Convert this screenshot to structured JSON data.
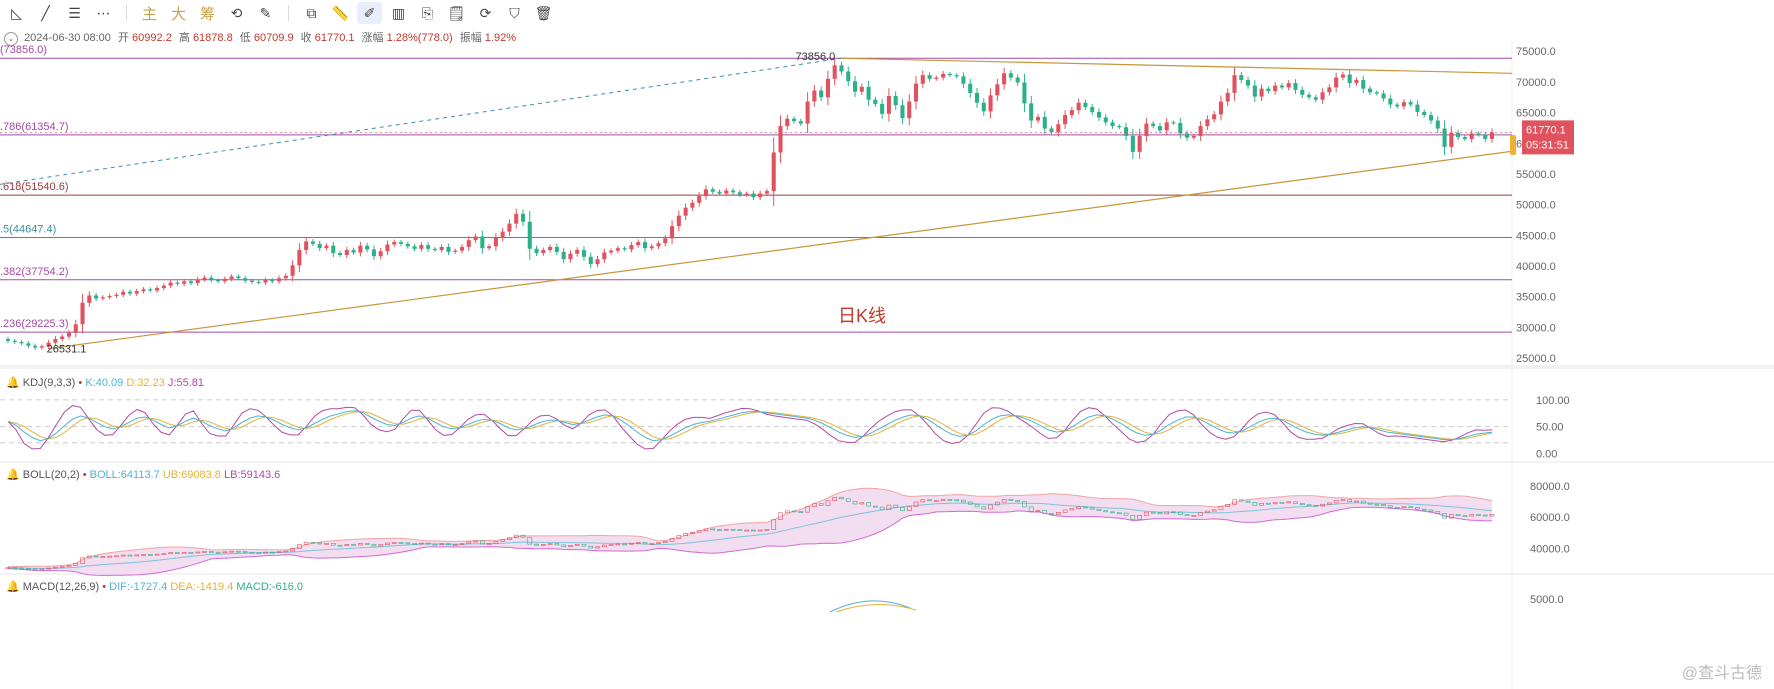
{
  "toolbar": {
    "items": [
      {
        "name": "trend-angle-icon",
        "glyph": "◺"
      },
      {
        "name": "line-tool-icon",
        "glyph": "╱"
      },
      {
        "name": "lines-menu-icon",
        "glyph": "☰"
      },
      {
        "name": "more-icon",
        "glyph": "⋯"
      },
      {
        "name": "main-force-button",
        "label": "主"
      },
      {
        "name": "large-order-button",
        "label": "大"
      },
      {
        "name": "chips-button",
        "label": "筹"
      },
      {
        "name": "replay-icon",
        "glyph": "⟲"
      },
      {
        "name": "brush-icon",
        "glyph": "✎"
      },
      {
        "name": "copy-icon",
        "glyph": "⧉"
      },
      {
        "name": "ruler-icon",
        "glyph": "📏"
      },
      {
        "name": "draw-pen-icon",
        "glyph": "✐"
      },
      {
        "name": "candles-icon",
        "glyph": "▥"
      },
      {
        "name": "clipboard-icon",
        "glyph": "⎘"
      },
      {
        "name": "note-icon",
        "glyph": "🗒"
      },
      {
        "name": "magnet-icon",
        "glyph": "⟳"
      },
      {
        "name": "filter-icon",
        "glyph": "⛉"
      },
      {
        "name": "trash-icon",
        "glyph": "🗑"
      }
    ]
  },
  "ohlc": {
    "datetime": "2024-06-30 08:00",
    "open_label": "开",
    "open": "60992.2",
    "high_label": "高",
    "high": "61878.8",
    "low_label": "低",
    "low": "60709.9",
    "close_label": "收",
    "close": "61770.1",
    "change_label": "涨幅",
    "change": "1.28%(778.0)",
    "amp_label": "振幅",
    "amp": "1.92%"
  },
  "colors": {
    "up": "#e0525e",
    "down": "#2bb08a",
    "fib": "#a34aa3",
    "fib_mid": "#3a8f9a",
    "trend": "#c8963c",
    "dashed": "#3a8fb0",
    "price_tag": "#e0525e",
    "timer_tag": "#e0525e"
  },
  "chart_data": [
    {
      "type": "candlestick",
      "title": "日K线",
      "price_axis_ticks": [
        "75000.0",
        "70000.0",
        "65000.0",
        "60000.0",
        "55000.0",
        "50000.0",
        "45000.0",
        "40000.0",
        "35000.0",
        "30000.0",
        "25000.0"
      ],
      "ylim": [
        23700,
        76500
      ],
      "fib_levels": [
        {
          "label": "(73856.0)",
          "value": 73856.0
        },
        {
          "label": ".786(61354.7)",
          "value": 61354.7
        },
        {
          "label": ".618(51540.6)",
          "value": 51540.6
        },
        {
          "label": ".5(44647.4)",
          "value": 44647.4
        },
        {
          "label": ".382(37754.2)",
          "value": 37754.2
        },
        {
          "label": ".236(29225.3)",
          "value": 29225.3
        }
      ],
      "annotations": [
        {
          "text": "73856.0",
          "value": 73856.0
        },
        {
          "text": "26531.1",
          "value": 26531.1
        }
      ],
      "last_price": "61770.1",
      "countdown": "05:31:51",
      "closes": [
        27800,
        27600,
        27400,
        27000,
        26700,
        26900,
        27500,
        28100,
        28500,
        29100,
        30500,
        34000,
        35200,
        34700,
        34900,
        35100,
        35300,
        35800,
        35500,
        35900,
        36200,
        36000,
        36400,
        36800,
        37300,
        37100,
        37500,
        37200,
        37800,
        38100,
        37700,
        37500,
        37900,
        38300,
        38000,
        37600,
        37400,
        37300,
        37700,
        37500,
        38000,
        38400,
        40100,
        42600,
        44000,
        43600,
        42900,
        43300,
        42100,
        41800,
        42600,
        42200,
        43300,
        42700,
        41600,
        42400,
        43500,
        43900,
        43600,
        43200,
        42800,
        43400,
        42800,
        42600,
        43100,
        42300,
        42500,
        43100,
        44200,
        44800,
        42900,
        43200,
        44600,
        45600,
        46900,
        48500,
        47200,
        42800,
        42100,
        42600,
        43100,
        42300,
        41100,
        42000,
        42600,
        41500,
        40300,
        41100,
        42200,
        42500,
        42900,
        42700,
        43400,
        43900,
        42900,
        43200,
        43700,
        44500,
        46500,
        48200,
        49500,
        50300,
        51400,
        52500,
        52100,
        51800,
        52300,
        52000,
        51600,
        51800,
        51200,
        51800,
        52200,
        58500,
        62800,
        64000,
        63600,
        63200,
        66800,
        68600,
        67500,
        70500,
        72700,
        71700,
        70100,
        68400,
        69200,
        67100,
        66400,
        64800,
        67700,
        66200,
        64100,
        66800,
        69700,
        71100,
        70500,
        70700,
        71300,
        71100,
        70900,
        69700,
        68200,
        66600,
        65200,
        67800,
        69600,
        71400,
        70700,
        69900,
        66500,
        63700,
        64300,
        62400,
        61800,
        63100,
        64600,
        65400,
        66600,
        65900,
        65100,
        64200,
        63400,
        62800,
        62600,
        61200,
        58600,
        61200,
        63200,
        62800,
        62100,
        63400,
        63300,
        61600,
        60900,
        61200,
        62800,
        63900,
        64700,
        66800,
        68200,
        71100,
        70300,
        69400,
        67600,
        68900,
        68500,
        69400,
        69100,
        69800,
        68700,
        67900,
        67500,
        67100,
        68300,
        69100,
        70700,
        71200,
        69800,
        70300,
        68900,
        68300,
        68100,
        67300,
        66300,
        66000,
        66700,
        66300,
        65100,
        64600,
        63700,
        62400,
        59400,
        61700,
        61000,
        60700,
        61600,
        61400,
        60700,
        61770
      ]
    },
    {
      "type": "line",
      "title": "KDJ(9,3,3)",
      "legend": [
        {
          "name": "K:40.09",
          "color": "#4db3d3"
        },
        {
          "name": "D:32.23",
          "color": "#e0b33a"
        },
        {
          "name": "J:55.81",
          "color": "#b34aa3"
        }
      ],
      "axis_ticks": [
        "100.00",
        "50.00",
        "0.00"
      ],
      "ylim": [
        -12,
        122
      ],
      "K": [
        60,
        52,
        40,
        30,
        24,
        28,
        38,
        52,
        64,
        70,
        66,
        58,
        50,
        46,
        50,
        58,
        66,
        68,
        62,
        54,
        48,
        52,
        60,
        66,
        60,
        52,
        46,
        42,
        48,
        58,
        66,
        70,
        68,
        62,
        54,
        48,
        44,
        48,
        56,
        64,
        70,
        74,
        78,
        80,
        76,
        68,
        60,
        54,
        52,
        58,
        66,
        70,
        66,
        58,
        50,
        46,
        48,
        54,
        60,
        64,
        62,
        56,
        48,
        44,
        46,
        52,
        58,
        62,
        62,
        58,
        54,
        56,
        62,
        68,
        72,
        70,
        62,
        52,
        40,
        30,
        24,
        26,
        32,
        40,
        48,
        54,
        58,
        60,
        64,
        68,
        72,
        76,
        78,
        78,
        76,
        74,
        72,
        70,
        68,
        66,
        62,
        56,
        48,
        40,
        34,
        30,
        32,
        38,
        46,
        54,
        62,
        68,
        72,
        70,
        64,
        54,
        44,
        36,
        32,
        34,
        42,
        54,
        64,
        70,
        72,
        70,
        66,
        60,
        52,
        44,
        40,
        42,
        50,
        60,
        68,
        72,
        70,
        64,
        56,
        46,
        38,
        34,
        36,
        44,
        54,
        62,
        68,
        68,
        62,
        54,
        46,
        40,
        38,
        42,
        50,
        58,
        64,
        66,
        62,
        54,
        46,
        40,
        36,
        34,
        36,
        40,
        44,
        48,
        50,
        48,
        44,
        40,
        38,
        36,
        34,
        32,
        30,
        28,
        26,
        26,
        28,
        32,
        36,
        38,
        40
      ]
    },
    {
      "type": "line",
      "title": "BOLL(20,2)",
      "legend": [
        {
          "name": "BOLL:64113.7",
          "color": "#4db3d3"
        },
        {
          "name": "UB:69083.8",
          "color": "#e0b33a"
        },
        {
          "name": "LB:59143.6",
          "color": "#b34aa3"
        }
      ],
      "axis_ticks": [
        "80000.0",
        "60000.0",
        "40000.0"
      ],
      "ylim": [
        25000,
        85000
      ]
    },
    {
      "type": "bar",
      "title": "MACD(12,26,9)",
      "legend": [
        {
          "name": "DIF:-1727.4",
          "color": "#4db3d3"
        },
        {
          "name": "DEA:-1419.4",
          "color": "#e0b33a"
        },
        {
          "name": "MACD:-616.0",
          "color": "#2bb08a"
        }
      ],
      "axis_ticks": [
        "5000.0"
      ]
    }
  ],
  "watermark": "@查斗古德"
}
